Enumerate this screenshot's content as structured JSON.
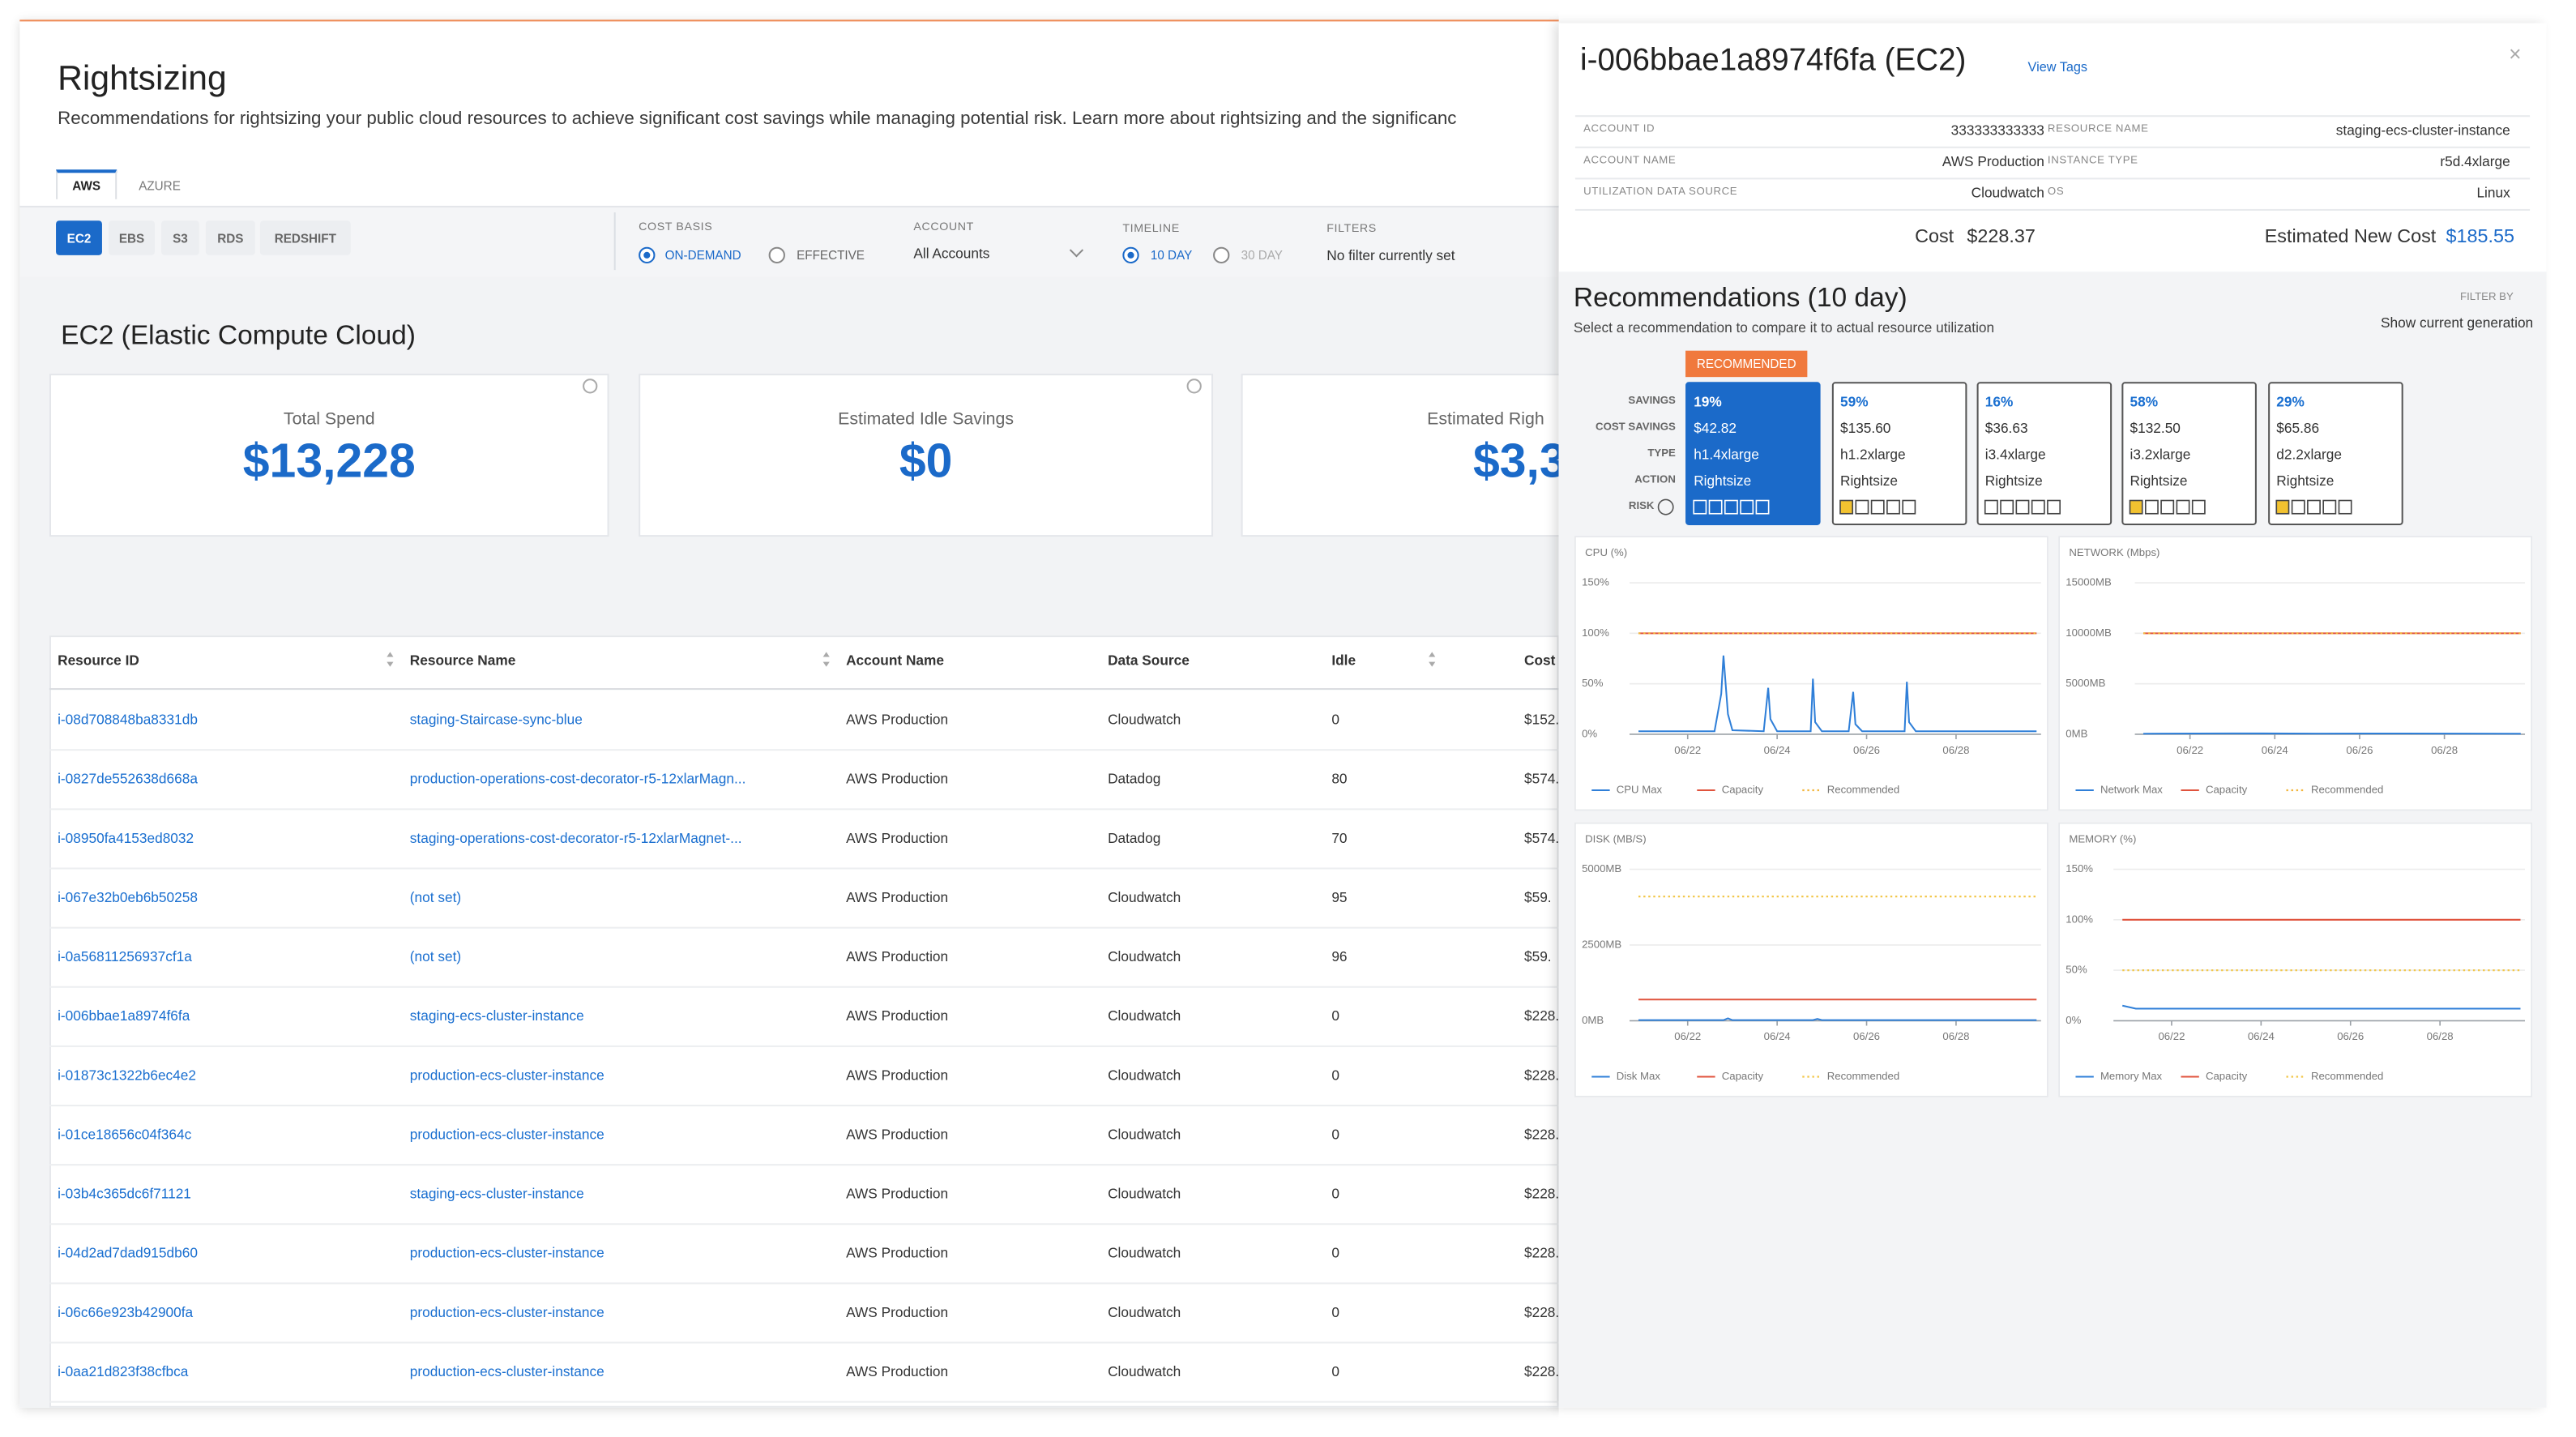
{
  "header": {
    "title": "Rightsizing",
    "description": "Recommendations for rightsizing your public cloud resources to achieve significant cost savings while managing potential risk. Learn more about rightsizing and the significanc"
  },
  "cloud_tabs": {
    "items": [
      "AWS",
      "AZURE"
    ],
    "active": 0
  },
  "service_tabs": {
    "items": [
      "EC2",
      "EBS",
      "S3",
      "RDS",
      "REDSHIFT"
    ],
    "active": 0
  },
  "filters": {
    "cost_basis": {
      "label": "COST BASIS",
      "options": [
        "ON-DEMAND",
        "EFFECTIVE"
      ],
      "selected": 0
    },
    "account": {
      "label": "ACCOUNT",
      "value": "All Accounts"
    },
    "timeline": {
      "label": "TIMELINE",
      "options": [
        "10 DAY",
        "30 DAY"
      ],
      "selected": 0
    },
    "filter": {
      "label": "FILTERS",
      "value": "No filter currently set"
    }
  },
  "section_title": "EC2 (Elastic Compute Cloud)",
  "cards": [
    {
      "label": "Total Spend",
      "value": "$13,228"
    },
    {
      "label": "Estimated Idle Savings",
      "value": "$0"
    },
    {
      "label": "Estimated Righ",
      "value": "$3,3"
    }
  ],
  "table": {
    "columns": [
      "Resource ID",
      "Resource Name",
      "Account Name",
      "Data Source",
      "Idle",
      "Cost"
    ],
    "rows": [
      [
        "i-08d708848ba8331db",
        "staging-Staircase-sync-blue",
        "AWS Production",
        "Cloudwatch",
        0,
        "$152."
      ],
      [
        "i-0827de552638d668a",
        "production-operations-cost-decorator-r5-12xlarMagn...",
        "AWS Production",
        "Datadog",
        80,
        "$574."
      ],
      [
        "i-08950fa4153ed8032",
        "staging-operations-cost-decorator-r5-12xlarMagnet-...",
        "AWS Production",
        "Datadog",
        70,
        "$574."
      ],
      [
        "i-067e32b0eb6b50258",
        "(not set)",
        "AWS Production",
        "Cloudwatch",
        95,
        "$59."
      ],
      [
        "i-0a56811256937cf1a",
        "(not set)",
        "AWS Production",
        "Cloudwatch",
        96,
        "$59."
      ],
      [
        "i-006bbae1a8974f6fa",
        "staging-ecs-cluster-instance",
        "AWS Production",
        "Cloudwatch",
        0,
        "$228."
      ],
      [
        "i-01873c1322b6ec4e2",
        "production-ecs-cluster-instance",
        "AWS Production",
        "Cloudwatch",
        0,
        "$228."
      ],
      [
        "i-01ce18656c04f364c",
        "production-ecs-cluster-instance",
        "AWS Production",
        "Cloudwatch",
        0,
        "$228."
      ],
      [
        "i-03b4c365dc6f71121",
        "staging-ecs-cluster-instance",
        "AWS Production",
        "Cloudwatch",
        0,
        "$228."
      ],
      [
        "i-04d2ad7dad915db60",
        "production-ecs-cluster-instance",
        "AWS Production",
        "Cloudwatch",
        0,
        "$228."
      ],
      [
        "i-06c66e923b42900fa",
        "production-ecs-cluster-instance",
        "AWS Production",
        "Cloudwatch",
        0,
        "$228."
      ],
      [
        "i-0aa21d823f38cfbca",
        "production-ecs-cluster-instance",
        "AWS Production",
        "Cloudwatch",
        0,
        "$228."
      ]
    ]
  },
  "detail": {
    "title": "i-006bbae1a8974f6fa (EC2)",
    "view_tags": "View Tags",
    "close": "×",
    "fields": [
      [
        "ACCOUNT ID",
        "333333333333",
        "RESOURCE NAME",
        "staging-ecs-cluster-instance"
      ],
      [
        "ACCOUNT NAME",
        "AWS Production",
        "INSTANCE TYPE",
        "r5d.4xlarge"
      ],
      [
        "UTILIZATION DATA SOURCE",
        "Cloudwatch",
        "OS",
        "Linux"
      ]
    ],
    "cost_label": "Cost",
    "cost": "$228.37",
    "new_cost_label": "Estimated New Cost",
    "new_cost": "$185.55"
  },
  "recommendations": {
    "title": "Recommendations (10 day)",
    "subtitle": "Select a recommendation to compare it to actual resource utilization",
    "filter_label": "FILTER BY",
    "filter_value": "Show current generation",
    "badge": "RECOMMENDED",
    "row_labels": [
      "SAVINGS",
      "COST SAVINGS",
      "TYPE",
      "ACTION",
      "RISK"
    ],
    "selected": 0,
    "options": [
      {
        "savings": "19%",
        "cost_savings": "$42.82",
        "type": "h1.4xlarge",
        "action": "Rightsize",
        "risk": 0
      },
      {
        "savings": "59%",
        "cost_savings": "$135.60",
        "type": "h1.2xlarge",
        "action": "Rightsize",
        "risk": 1
      },
      {
        "savings": "16%",
        "cost_savings": "$36.63",
        "type": "i3.4xlarge",
        "action": "Rightsize",
        "risk": 0
      },
      {
        "savings": "58%",
        "cost_savings": "$132.50",
        "type": "i3.2xlarge",
        "action": "Rightsize",
        "risk": 1
      },
      {
        "savings": "29%",
        "cost_savings": "$65.86",
        "type": "d2.2xlarge",
        "action": "Rightsize",
        "risk": 1
      }
    ]
  },
  "chart_data": [
    {
      "type": "line",
      "title": "CPU (%)",
      "xlim": [
        20.7,
        29.9
      ],
      "xticks": [
        {
          "value": 22,
          "label": "06/22"
        },
        {
          "value": 24,
          "label": "06/24"
        },
        {
          "value": 26,
          "label": "06/26"
        },
        {
          "value": 28,
          "label": "06/28"
        }
      ],
      "ylim": [
        0,
        150
      ],
      "yticks": [
        {
          "value": 0,
          "label": "0%"
        },
        {
          "value": 50,
          "label": "50%"
        },
        {
          "value": 100,
          "label": "100%"
        },
        {
          "value": 150,
          "label": "150%"
        }
      ],
      "series": [
        {
          "name": "CPU Max",
          "color": "#2f7fd8",
          "x": [
            20.9,
            22.6,
            22.75,
            22.8,
            22.9,
            23.0,
            23.7,
            23.8,
            23.85,
            24.0,
            24.75,
            24.8,
            24.85,
            25.0,
            25.6,
            25.7,
            25.75,
            25.9,
            26.85,
            26.9,
            26.95,
            27.1,
            29.8
          ],
          "values": [
            3,
            3,
            40,
            78,
            20,
            4,
            3,
            46,
            15,
            3,
            3,
            55,
            12,
            3,
            3,
            42,
            10,
            3,
            3,
            52,
            12,
            3,
            3
          ]
        },
        {
          "name": "Capacity",
          "color": "#e0533d",
          "x": [
            20.9,
            29.8
          ],
          "values": [
            100,
            100
          ]
        },
        {
          "name": "Recommended",
          "color": "#f2b63e",
          "style": "dotted",
          "x": [
            20.9,
            29.8
          ],
          "values": [
            100,
            100
          ]
        }
      ]
    },
    {
      "type": "line",
      "title": "NETWORK (Mbps)",
      "xlim": [
        20.7,
        29.9
      ],
      "xticks": [
        {
          "value": 22,
          "label": "06/22"
        },
        {
          "value": 24,
          "label": "06/24"
        },
        {
          "value": 26,
          "label": "06/26"
        },
        {
          "value": 28,
          "label": "06/28"
        }
      ],
      "ylim": [
        0,
        15000
      ],
      "yticks": [
        {
          "value": 0,
          "label": "0MB"
        },
        {
          "value": 5000,
          "label": "5000MB"
        },
        {
          "value": 10000,
          "label": "10000MB"
        },
        {
          "value": 15000,
          "label": "15000MB"
        }
      ],
      "series": [
        {
          "name": "Network Max",
          "color": "#2f7fd8",
          "x": [
            20.9,
            23,
            25,
            27,
            29.8
          ],
          "values": [
            60,
            90,
            70,
            80,
            60
          ]
        },
        {
          "name": "Capacity",
          "color": "#e0533d",
          "x": [
            20.9,
            29.8
          ],
          "values": [
            10000,
            10000
          ]
        },
        {
          "name": "Recommended",
          "color": "#f2b63e",
          "style": "dotted",
          "x": [
            20.9,
            29.8
          ],
          "values": [
            10000,
            10000
          ]
        }
      ]
    },
    {
      "type": "line",
      "title": "DISK (MB/S)",
      "xlim": [
        20.7,
        29.9
      ],
      "xticks": [
        {
          "value": 22,
          "label": "06/22"
        },
        {
          "value": 24,
          "label": "06/24"
        },
        {
          "value": 26,
          "label": "06/26"
        },
        {
          "value": 28,
          "label": "06/28"
        }
      ],
      "ylim": [
        0,
        5000
      ],
      "yticks": [
        {
          "value": 0,
          "label": "0MB"
        },
        {
          "value": 2500,
          "label": "2500MB"
        },
        {
          "value": 5000,
          "label": "5000MB"
        }
      ],
      "series": [
        {
          "name": "Disk Max",
          "color": "#2f7fd8",
          "x": [
            20.9,
            22.8,
            22.9,
            23.0,
            24.8,
            24.9,
            25.0,
            29.8
          ],
          "values": [
            20,
            20,
            80,
            20,
            20,
            60,
            20,
            20
          ]
        },
        {
          "name": "Capacity",
          "color": "#e0533d",
          "x": [
            20.9,
            29.8
          ],
          "values": [
            700,
            700
          ]
        },
        {
          "name": "Recommended",
          "color": "#f2c74a",
          "style": "dotted",
          "x": [
            20.9,
            29.8
          ],
          "values": [
            4100,
            4100
          ]
        }
      ]
    },
    {
      "type": "line",
      "title": "MEMORY (%)",
      "xlim": [
        20.7,
        29.9
      ],
      "xticks": [
        {
          "value": 22,
          "label": "06/22"
        },
        {
          "value": 24,
          "label": "06/24"
        },
        {
          "value": 26,
          "label": "06/26"
        },
        {
          "value": 28,
          "label": "06/28"
        }
      ],
      "ylim": [
        0,
        150
      ],
      "yticks": [
        {
          "value": 0,
          "label": "0%"
        },
        {
          "value": 50,
          "label": "50%"
        },
        {
          "value": 100,
          "label": "100%"
        },
        {
          "value": 150,
          "label": "150%"
        }
      ],
      "series": [
        {
          "name": "Memory Max",
          "color": "#2f7fd8",
          "x": [
            20.9,
            21.2,
            29.8
          ],
          "values": [
            15,
            12,
            12
          ]
        },
        {
          "name": "Capacity",
          "color": "#e0533d",
          "x": [
            20.9,
            29.8
          ],
          "values": [
            100,
            100
          ]
        },
        {
          "name": "Recommended",
          "color": "#f2c74a",
          "style": "dotted",
          "x": [
            20.9,
            29.8
          ],
          "values": [
            50,
            50
          ]
        }
      ]
    }
  ]
}
